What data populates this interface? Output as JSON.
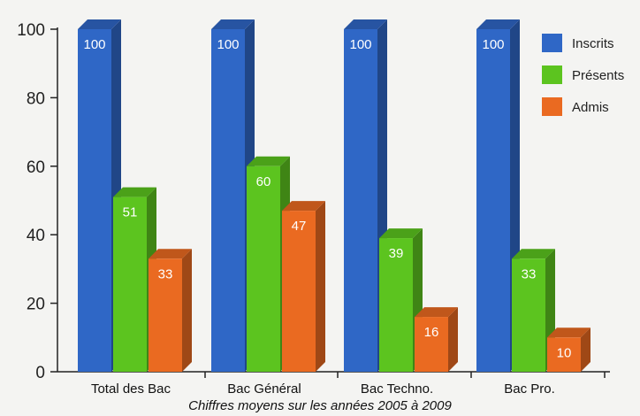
{
  "chart_data": {
    "type": "bar",
    "subtitle": "Chiffres moyens sur les années 2005 à 2009",
    "categories": [
      "Total des Bac",
      "Bac Général",
      "Bac Techno.",
      "Bac Pro."
    ],
    "series": [
      {
        "name": "Inscrits",
        "color": "#2f67c6",
        "values": [
          100,
          100,
          100,
          100
        ]
      },
      {
        "name": "Présents",
        "color": "#5cc41f",
        "values": [
          51,
          60,
          39,
          33
        ]
      },
      {
        "name": "Admis",
        "color": "#ea6a21",
        "values": [
          33,
          47,
          16,
          10
        ]
      }
    ],
    "yticks": [
      "0",
      "20",
      "40",
      "60",
      "80",
      "100"
    ],
    "ylim": [
      0,
      100
    ],
    "grid": false,
    "legend_position": "top-right",
    "style": "3d-columns"
  }
}
